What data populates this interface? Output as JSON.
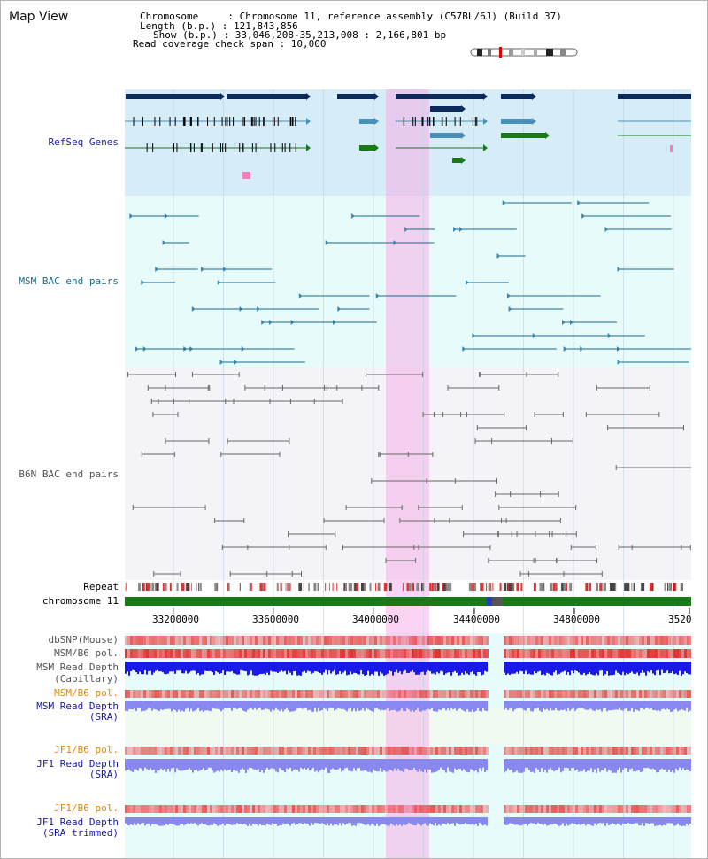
{
  "header": {
    "title": "Map View",
    "chromosome_line": "Chromosome     : Chromosome 11, reference assembly (C57BL/6J) (Build 37)",
    "length_line": "Length (b.p.) : 121,843,856",
    "show_line": "Show (b.p.) : 33,046,208-35,213,008 : 2,166,801 bp",
    "coverage_line": "Read coverage check span : 10,000"
  },
  "tracks": {
    "refseq": {
      "label": "RefSeq Genes",
      "color": "#1a1aa6"
    },
    "msm_bac": {
      "label": "MSM BAC end pairs",
      "color": "#1a6a8c"
    },
    "b6n_bac": {
      "label": "B6N BAC end pairs",
      "color": "#555555"
    },
    "repeat": {
      "label": "Repeat",
      "color": "#000000"
    },
    "chromosome": {
      "label": "chromosome 11",
      "color": "#000000"
    },
    "dbsnp": {
      "label": "dbSNP(Mouse)",
      "color": "#555555"
    },
    "msm_b6_pol": {
      "label": "MSM/B6 pol.",
      "color": "#555555"
    },
    "msm_read_depth_cap": {
      "label": "MSM Read Depth",
      "sub": "(Capillary)",
      "color": "#555555"
    },
    "msm_b6_pol2": {
      "label": "MSM/B6 pol.",
      "color": "#e08a00"
    },
    "msm_read_depth_sra": {
      "label": "MSM Read Depth",
      "sub": "(SRA)",
      "color": "#1a1aa6"
    },
    "jf1_b6_pol": {
      "label": "JF1/B6 pol.",
      "color": "#e08a00"
    },
    "jf1_read_depth_sra": {
      "label": "JF1 Read Depth",
      "sub": "(SRA)",
      "color": "#1a1aa6"
    },
    "jf1_b6_pol2": {
      "label": "JF1/B6 pol.",
      "color": "#e08a00"
    },
    "jf1_read_depth_trim": {
      "label": "JF1 Read Depth",
      "sub": "(SRA trimmed)",
      "color": "#1a1aa6"
    }
  },
  "axis": {
    "ticks": [
      "33200000",
      "33600000",
      "34000000",
      "34400000",
      "34800000",
      "3520"
    ],
    "range_bp": [
      33046208,
      35213008
    ],
    "highlight_bp": [
      34000000,
      34170000
    ]
  },
  "colors": {
    "refseq_dark": "#0d2a5c",
    "refseq_mid": "#4a90b8",
    "refseq_green": "#1a7a1a",
    "refseq_bg": "#d6ecf7",
    "msm_bg": "#e8fbfb",
    "b6n_bg": "#f4f4f8",
    "highlight": "#f6b0e8",
    "chromosome_bar": "#1a7a1a",
    "snp_red": "#e83030",
    "depth_blue": "#1a1ae8",
    "depth_light": "#8888f0"
  }
}
